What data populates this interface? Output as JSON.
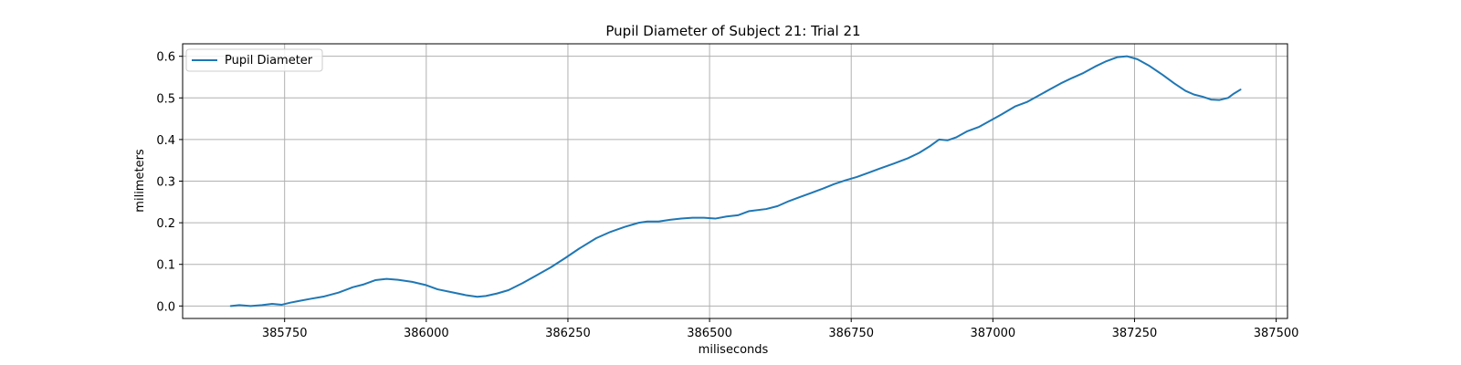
{
  "chart_data": {
    "type": "line",
    "title": "Pupil Diameter of Subject 21: Trial 21",
    "xlabel": "miliseconds",
    "ylabel": "milimeters",
    "xlim": [
      385570,
      387520
    ],
    "ylim": [
      -0.03,
      0.63
    ],
    "xticks": [
      385750,
      386000,
      386250,
      386500,
      386750,
      387000,
      387250,
      387500
    ],
    "yticks": [
      0.0,
      0.1,
      0.2,
      0.3,
      0.4,
      0.5,
      0.6
    ],
    "xtick_labels": [
      "385750",
      "386000",
      "386250",
      "386500",
      "386750",
      "387000",
      "387250",
      "387500"
    ],
    "ytick_labels": [
      "0.0",
      "0.1",
      "0.2",
      "0.3",
      "0.4",
      "0.5",
      "0.6"
    ],
    "grid": true,
    "legend": {
      "position": "top-left",
      "entries": [
        "Pupil Diameter"
      ]
    },
    "series": [
      {
        "name": "Pupil Diameter",
        "color": "#1f77b4",
        "x": [
          385655,
          385670,
          385690,
          385710,
          385728,
          385745,
          385760,
          385775,
          385795,
          385820,
          385845,
          385870,
          385890,
          385910,
          385930,
          385950,
          385975,
          386000,
          386020,
          386045,
          386070,
          386090,
          386105,
          386125,
          386145,
          386170,
          386195,
          386220,
          386245,
          386270,
          386300,
          386325,
          386350,
          386375,
          386390,
          386410,
          386430,
          386450,
          386470,
          386490,
          386510,
          386530,
          386550,
          386570,
          386600,
          386620,
          386640,
          386660,
          386680,
          386700,
          386720,
          386740,
          386760,
          386780,
          386800,
          386825,
          386850,
          386870,
          386890,
          386905,
          386920,
          386935,
          386955,
          386975,
          386995,
          387015,
          387040,
          387060,
          387080,
          387100,
          387120,
          387140,
          387160,
          387180,
          387200,
          387220,
          387237,
          387255,
          387275,
          387300,
          387320,
          387340,
          387355,
          387370,
          387385,
          387400,
          387415,
          387425,
          387437
        ],
        "values": [
          0.0,
          0.002,
          0.0,
          0.002,
          0.005,
          0.003,
          0.008,
          0.012,
          0.017,
          0.023,
          0.032,
          0.045,
          0.052,
          0.062,
          0.065,
          0.063,
          0.058,
          0.05,
          0.04,
          0.033,
          0.026,
          0.022,
          0.024,
          0.03,
          0.038,
          0.055,
          0.074,
          0.093,
          0.115,
          0.138,
          0.163,
          0.178,
          0.19,
          0.2,
          0.203,
          0.203,
          0.207,
          0.21,
          0.212,
          0.212,
          0.21,
          0.215,
          0.218,
          0.228,
          0.233,
          0.24,
          0.252,
          0.262,
          0.272,
          0.282,
          0.293,
          0.302,
          0.31,
          0.32,
          0.33,
          0.342,
          0.355,
          0.368,
          0.385,
          0.4,
          0.398,
          0.405,
          0.42,
          0.43,
          0.445,
          0.46,
          0.48,
          0.49,
          0.505,
          0.52,
          0.535,
          0.548,
          0.56,
          0.575,
          0.588,
          0.598,
          0.6,
          0.593,
          0.578,
          0.555,
          0.535,
          0.517,
          0.508,
          0.503,
          0.496,
          0.495,
          0.5,
          0.51,
          0.52
        ]
      }
    ]
  }
}
